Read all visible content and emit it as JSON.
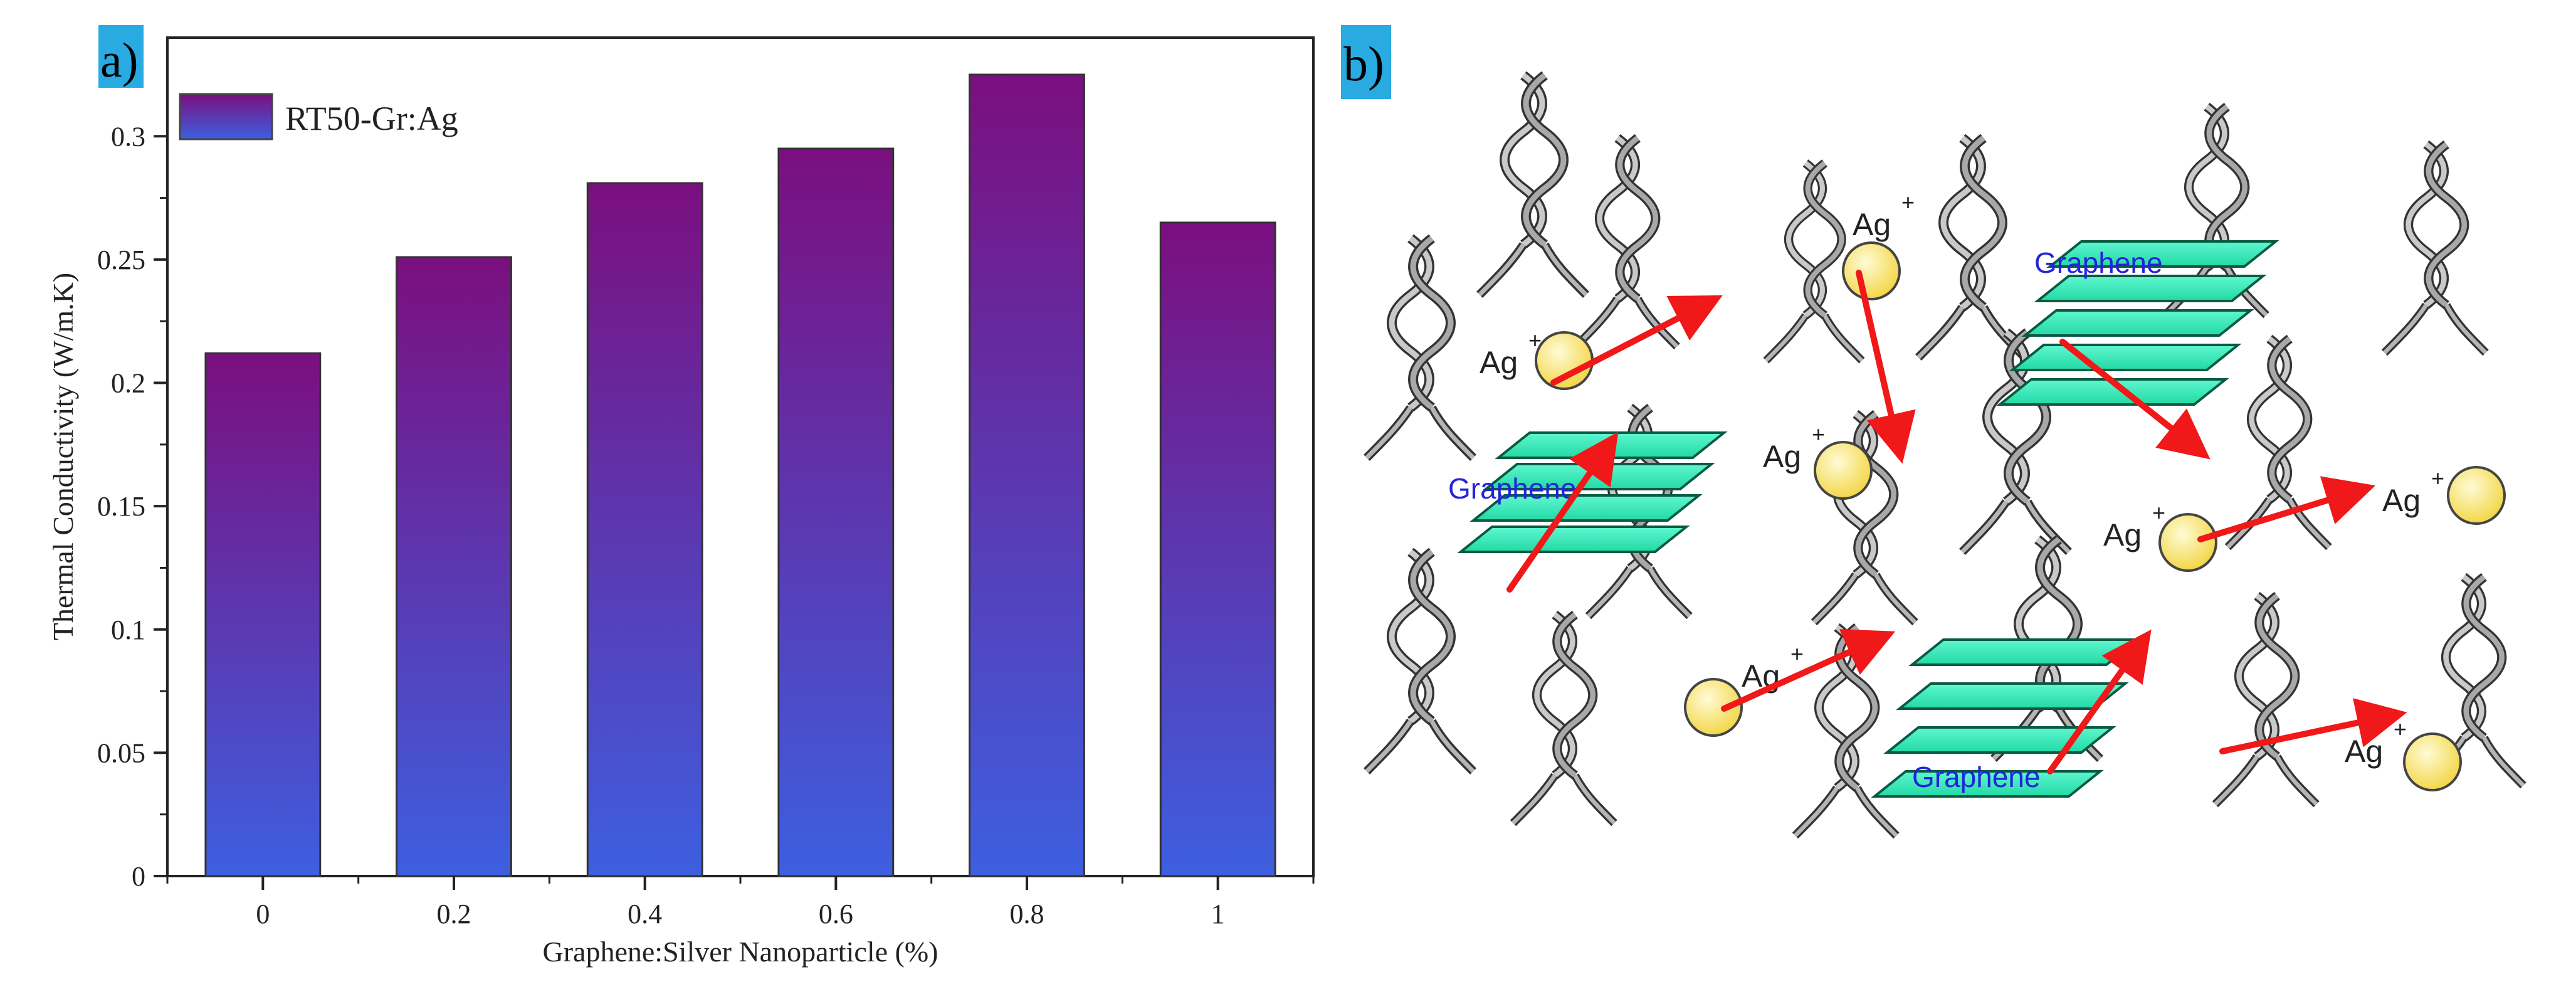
{
  "panels": {
    "a_label": "a)",
    "b_label": "b)",
    "label_bg": "#29abe2"
  },
  "chart_data": {
    "type": "bar",
    "title": "",
    "xlabel": "Graphene:Silver Nanoparticle (%)",
    "ylabel": "Thermal Conductivity (W/m.K)",
    "categories": [
      "0",
      "0.2",
      "0.4",
      "0.6",
      "0.8",
      "1"
    ],
    "series": [
      {
        "name": "RT50-Gr:Ag",
        "values": [
          0.212,
          0.251,
          0.281,
          0.295,
          0.325,
          0.265
        ]
      }
    ],
    "ylim": [
      0,
      0.34
    ],
    "yticks": [
      0,
      0.05,
      0.1,
      0.15,
      0.2,
      0.25,
      0.3
    ],
    "ytick_labels": [
      "0",
      "0.05",
      "0.1",
      "0.15",
      "0.2",
      "0.25",
      "0.3"
    ],
    "legend_position": "top-left",
    "grid": false,
    "bar_gradient": {
      "top": "#7b0f7f",
      "bottom": "#3d5fe0"
    }
  },
  "diagram": {
    "ag_label": "Ag",
    "ag_charge": "+",
    "graphene_label": "Graphene",
    "colors": {
      "graphene_sheet": "#3bf0bf",
      "silver_particle": "#f7e25a",
      "arrow": "#f01818",
      "helix": "#9a9a9a",
      "graphene_text": "#2222dd"
    }
  }
}
